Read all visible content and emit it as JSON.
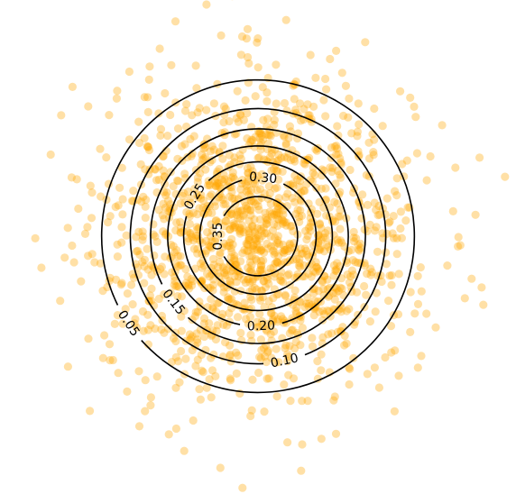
{
  "chart_data": {
    "type": "scatter",
    "title": "",
    "xlabel": "",
    "ylabel": "",
    "grid": false,
    "axes_visible": false,
    "distribution": "2D isotropic Gaussian (mean 0, sd 1)",
    "point_count": 1500,
    "point_color": "#FFA500",
    "point_alpha": 0.35,
    "contour_color": "#000000",
    "xlim": [
      -3.3,
      3.3
    ],
    "ylim": [
      -3.3,
      3.3
    ],
    "contours": [
      {
        "level": 0.05,
        "label": "0.05"
      },
      {
        "level": 0.1,
        "label": "0.10"
      },
      {
        "level": 0.15,
        "label": "0.15"
      },
      {
        "level": 0.2,
        "label": "0.20"
      },
      {
        "level": 0.25,
        "label": "0.25"
      },
      {
        "level": 0.3,
        "label": "0.30"
      },
      {
        "level": 0.35,
        "label": "0.35"
      }
    ]
  }
}
